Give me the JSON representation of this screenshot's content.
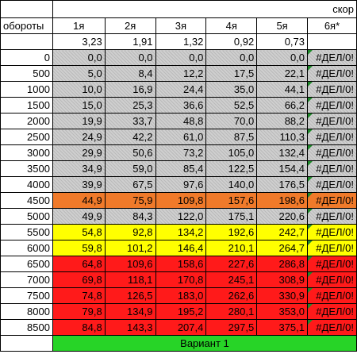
{
  "header": {
    "speed_label": "скор",
    "rpm_label": "обороты",
    "gears": [
      "1я",
      "2я",
      "3я",
      "4я",
      "5я",
      "6я*"
    ],
    "ratios": [
      "3,23",
      "1,91",
      "1,32",
      "0,92",
      "0,73",
      ""
    ]
  },
  "rows": [
    {
      "rpm": "0",
      "band": "gray",
      "v": [
        "0,0",
        "0,0",
        "0,0",
        "0,0",
        "0,0"
      ],
      "err": "#ДЕЛ/0!"
    },
    {
      "rpm": "500",
      "band": "gray",
      "v": [
        "5,0",
        "8,4",
        "12,2",
        "17,5",
        "22,1"
      ],
      "err": "#ДЕЛ/0!"
    },
    {
      "rpm": "1000",
      "band": "gray",
      "v": [
        "10,0",
        "16,9",
        "24,4",
        "35,0",
        "44,1"
      ],
      "err": "#ДЕЛ/0!"
    },
    {
      "rpm": "1500",
      "band": "gray",
      "v": [
        "15,0",
        "25,3",
        "36,6",
        "52,5",
        "66,2"
      ],
      "err": "#ДЕЛ/0!"
    },
    {
      "rpm": "2000",
      "band": "gray",
      "v": [
        "19,9",
        "33,7",
        "48,8",
        "70,0",
        "88,2"
      ],
      "err": "#ДЕЛ/0!"
    },
    {
      "rpm": "2500",
      "band": "gray",
      "v": [
        "24,9",
        "42,2",
        "61,0",
        "87,5",
        "110,3"
      ],
      "err": "#ДЕЛ/0!"
    },
    {
      "rpm": "3000",
      "band": "gray",
      "v": [
        "29,9",
        "50,6",
        "73,2",
        "105,0",
        "132,4"
      ],
      "err": "#ДЕЛ/0!"
    },
    {
      "rpm": "3500",
      "band": "gray",
      "v": [
        "34,9",
        "59,0",
        "85,4",
        "122,5",
        "154,4"
      ],
      "err": "#ДЕЛ/0!"
    },
    {
      "rpm": "4000",
      "band": "gray",
      "v": [
        "39,9",
        "67,5",
        "97,6",
        "140,0",
        "176,5"
      ],
      "err": "#ДЕЛ/0!"
    },
    {
      "rpm": "4500",
      "band": "orange",
      "v": [
        "44,9",
        "75,9",
        "109,8",
        "157,6",
        "198,6"
      ],
      "err": "#ДЕЛ/0!"
    },
    {
      "rpm": "5000",
      "band": "gray",
      "v": [
        "49,9",
        "84,3",
        "122,0",
        "175,1",
        "220,6"
      ],
      "err": "#ДЕЛ/0!"
    },
    {
      "rpm": "5500",
      "band": "yellow",
      "v": [
        "54,8",
        "92,8",
        "134,2",
        "192,6",
        "242,7"
      ],
      "err": "#ДЕЛ/0!"
    },
    {
      "rpm": "6000",
      "band": "yellow",
      "v": [
        "59,8",
        "101,2",
        "146,4",
        "210,1",
        "264,7"
      ],
      "err": "#ДЕЛ/0!"
    },
    {
      "rpm": "6500",
      "band": "red",
      "v": [
        "64,8",
        "109,6",
        "158,6",
        "227,6",
        "286,8"
      ],
      "err": "#ДЕЛ/0!"
    },
    {
      "rpm": "7000",
      "band": "red",
      "v": [
        "69,8",
        "118,1",
        "170,8",
        "245,1",
        "308,9"
      ],
      "err": "#ДЕЛ/0!"
    },
    {
      "rpm": "7500",
      "band": "red",
      "v": [
        "74,8",
        "126,5",
        "183,0",
        "262,6",
        "330,9"
      ],
      "err": "#ДЕЛ/0!"
    },
    {
      "rpm": "8000",
      "band": "red",
      "v": [
        "79,8",
        "134,9",
        "195,2",
        "280,1",
        "353,0"
      ],
      "err": "#ДЕЛ/0!"
    },
    {
      "rpm": "8500",
      "band": "red",
      "v": [
        "84,8",
        "143,3",
        "207,4",
        "297,5",
        "375,1"
      ],
      "err": "#ДЕЛ/0!"
    }
  ],
  "footer": {
    "label": "Вариант 1"
  },
  "colors": {
    "gray": "#cfcfcf",
    "orange": "#f07a2a",
    "yellow": "#ffff00",
    "red": "#ff1a1a",
    "green": "#27d427",
    "comment_marker": "#1f8a2a"
  }
}
